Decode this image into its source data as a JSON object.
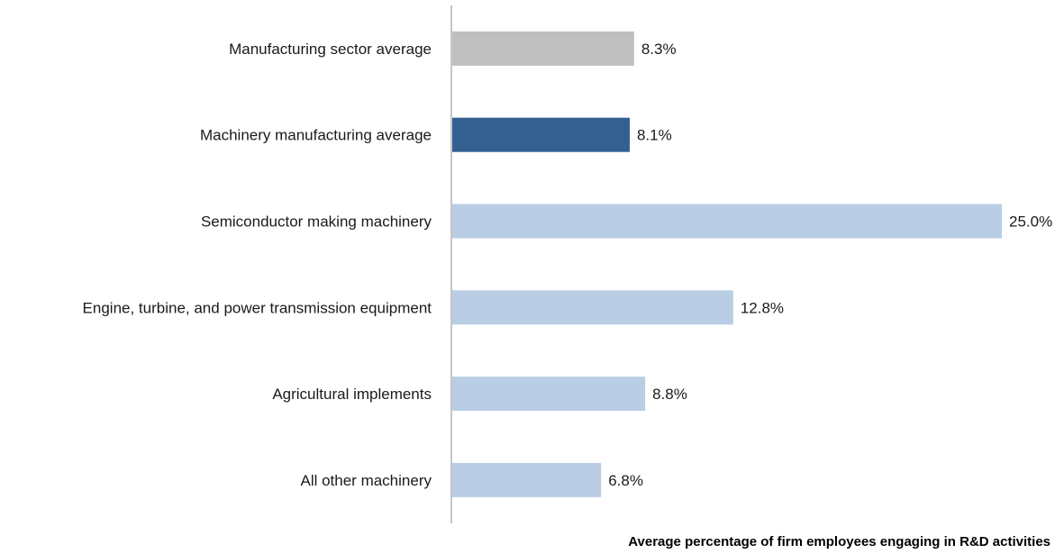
{
  "chart_data": {
    "type": "bar",
    "orientation": "horizontal",
    "categories": [
      "Manufacturing sector average",
      "Machinery manufacturing average",
      "Semiconductor making machinery",
      "Engine, turbine, and power transmission equipment",
      "Agricultural implements",
      "All other machinery"
    ],
    "values": [
      8.3,
      8.1,
      25.0,
      12.8,
      8.8,
      6.8
    ],
    "value_labels": [
      "8.3%",
      "8.1%",
      "25.0%",
      "12.8%",
      "8.8%",
      "6.8%"
    ],
    "bar_colors": [
      "#bfbfbf",
      "#336091",
      "#b9cde5",
      "#b9cde5",
      "#b9cde5",
      "#b9cde5"
    ],
    "title": "",
    "xlabel": "Average percentage of firm employees engaging in R&D activities",
    "ylabel": "",
    "xlim": [
      0,
      25
    ],
    "grid": false,
    "legend": "none"
  }
}
